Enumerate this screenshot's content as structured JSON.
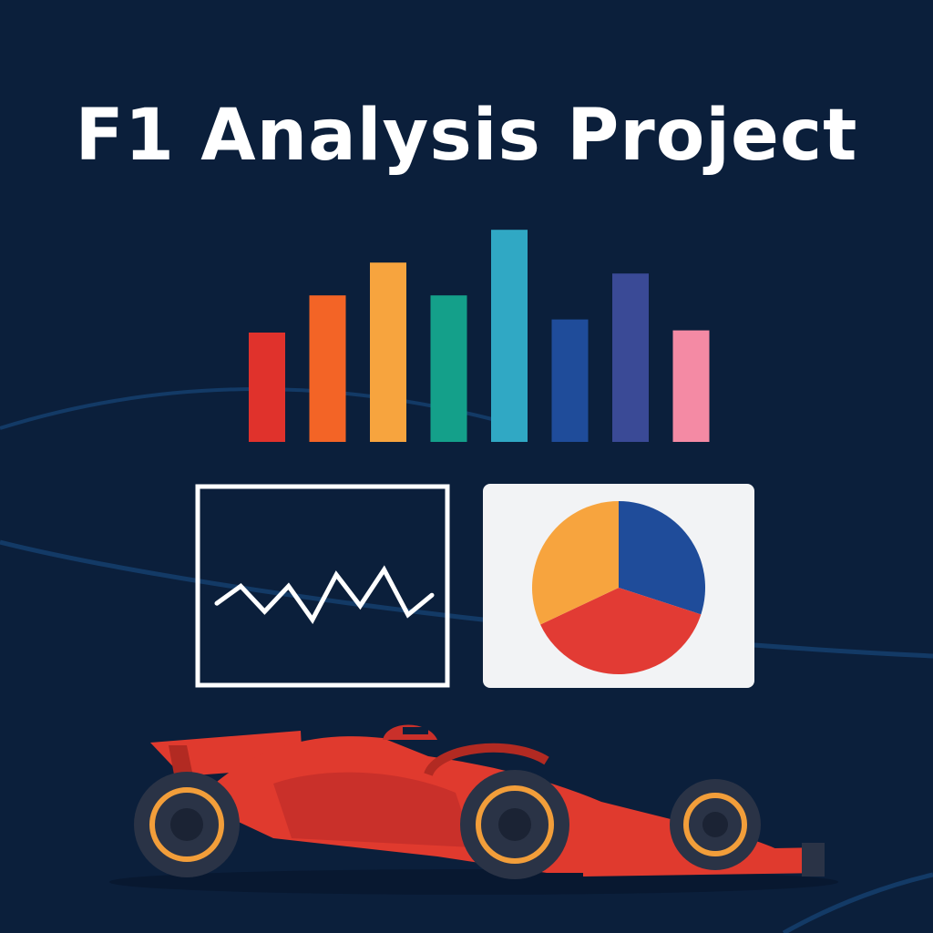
{
  "title": "F1 Analysis Project",
  "colors": {
    "background": "#0b1f3b",
    "track_curve": "#133a66",
    "line_chart_stroke": "#ffffff",
    "pie_panel_bg": "#f2f3f5",
    "car_body": "#e03a2e",
    "car_dark": "#b22a22",
    "tire": "#2a3346",
    "rim": "#f29e3a"
  },
  "bar_icon": {
    "values": [
      0.5,
      0.67,
      0.82,
      0.67,
      0.97,
      0.56,
      0.77,
      0.51
    ],
    "colors": [
      "#e0322c",
      "#f36426",
      "#f7a43e",
      "#14a08a",
      "#30a8c4",
      "#1f4c9a",
      "#3a4a96",
      "#f48aa4"
    ]
  },
  "line_icon": {
    "values": [
      0.22,
      0.43,
      0.12,
      0.43,
      0.02,
      0.57,
      0.19,
      0.63,
      0.08,
      0.32
    ]
  },
  "pie_icon": {
    "slices": [
      {
        "fraction": 0.3,
        "color": "#1f4c9a"
      },
      {
        "fraction": 0.38,
        "color": "#e23b34"
      },
      {
        "fraction": 0.32,
        "color": "#f7a43e"
      }
    ]
  }
}
